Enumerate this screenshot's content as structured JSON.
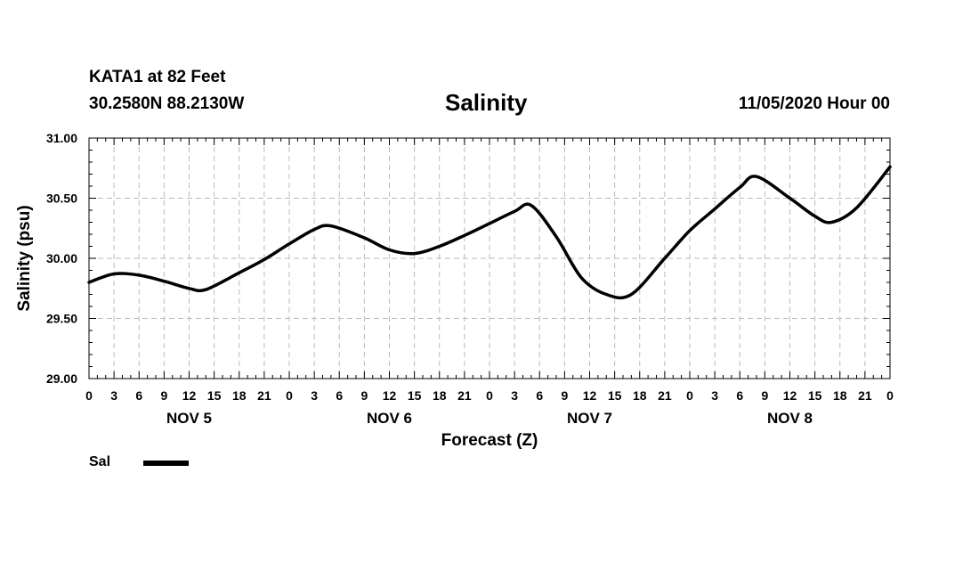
{
  "header": {
    "station": "KATA1 at 82 Feet",
    "coords": "30.2580N 88.2130W",
    "title": "Salinity",
    "issued": "11/05/2020 Hour 00"
  },
  "chart_data": {
    "type": "line",
    "title": "Salinity",
    "xlabel": "Forecast (Z)",
    "ylabel": "Salinity (psu)",
    "ylim": [
      29.0,
      31.0
    ],
    "yticks": [
      "29.00",
      "29.50",
      "30.00",
      "30.50",
      "31.00"
    ],
    "xlim_hours": [
      0,
      96
    ],
    "hour_labels": [
      "0",
      "3",
      "6",
      "9",
      "12",
      "15",
      "18",
      "21",
      "0",
      "3",
      "6",
      "9",
      "12",
      "15",
      "18",
      "21",
      "0",
      "3",
      "6",
      "9",
      "12",
      "15",
      "18",
      "21",
      "0",
      "3",
      "6",
      "9",
      "12",
      "15",
      "18",
      "21",
      "0"
    ],
    "day_labels": [
      "NOV 5",
      "NOV 6",
      "NOV 7",
      "NOV 8"
    ],
    "grid": true,
    "series": [
      {
        "name": "Sal",
        "color": "#000000",
        "x": [
          0,
          3,
          6,
          9,
          12,
          14,
          18,
          21,
          24,
          27,
          29,
          33,
          36,
          39,
          42,
          45,
          48,
          51,
          53,
          56,
          59,
          62,
          65,
          69,
          72,
          75,
          78,
          80,
          84,
          87,
          89,
          92,
          96
        ],
        "values": [
          29.8,
          29.87,
          29.86,
          29.81,
          29.75,
          29.74,
          29.88,
          29.99,
          30.12,
          30.24,
          30.27,
          30.17,
          30.07,
          30.04,
          30.1,
          30.19,
          30.29,
          30.39,
          30.44,
          30.18,
          29.84,
          29.7,
          29.7,
          30.0,
          30.23,
          30.41,
          30.59,
          30.68,
          30.5,
          30.35,
          30.3,
          30.42,
          30.76
        ]
      }
    ]
  },
  "legend": {
    "label": "Sal"
  }
}
